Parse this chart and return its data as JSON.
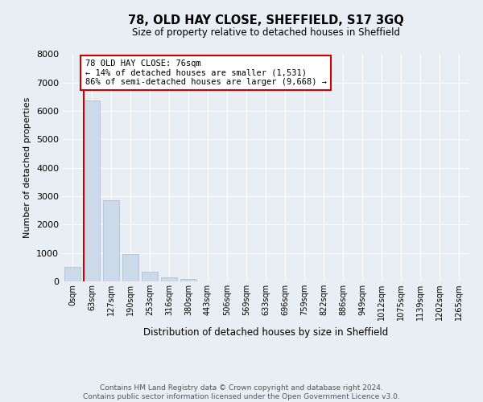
{
  "title": "78, OLD HAY CLOSE, SHEFFIELD, S17 3GQ",
  "subtitle": "Size of property relative to detached houses in Sheffield",
  "xlabel": "Distribution of detached houses by size in Sheffield",
  "ylabel": "Number of detached properties",
  "bar_color": "#ccd9e8",
  "bar_edge_color": "#aabbd0",
  "annotation_line_color": "#cc0000",
  "annotation_box_color": "#cc0000",
  "categories": [
    "0sqm",
    "63sqm",
    "127sqm",
    "190sqm",
    "253sqm",
    "316sqm",
    "380sqm",
    "443sqm",
    "506sqm",
    "569sqm",
    "633sqm",
    "696sqm",
    "759sqm",
    "822sqm",
    "886sqm",
    "949sqm",
    "1012sqm",
    "1075sqm",
    "1139sqm",
    "1202sqm",
    "1265sqm"
  ],
  "values": [
    500,
    6380,
    2870,
    975,
    345,
    130,
    80,
    0,
    0,
    0,
    0,
    0,
    0,
    0,
    0,
    0,
    0,
    0,
    0,
    0,
    0
  ],
  "ylim": [
    0,
    8000
  ],
  "yticks": [
    0,
    1000,
    2000,
    3000,
    4000,
    5000,
    6000,
    7000,
    8000
  ],
  "property_size": "76sqm",
  "property_name": "78 OLD HAY CLOSE",
  "pct_smaller": "14%",
  "n_smaller": "1,531",
  "pct_larger": "86%",
  "n_larger": "9,668",
  "footer_line1": "Contains HM Land Registry data © Crown copyright and database right 2024.",
  "footer_line2": "Contains public sector information licensed under the Open Government Licence v3.0.",
  "background_color": "#e8eef4",
  "plot_background": "#e8eef4"
}
